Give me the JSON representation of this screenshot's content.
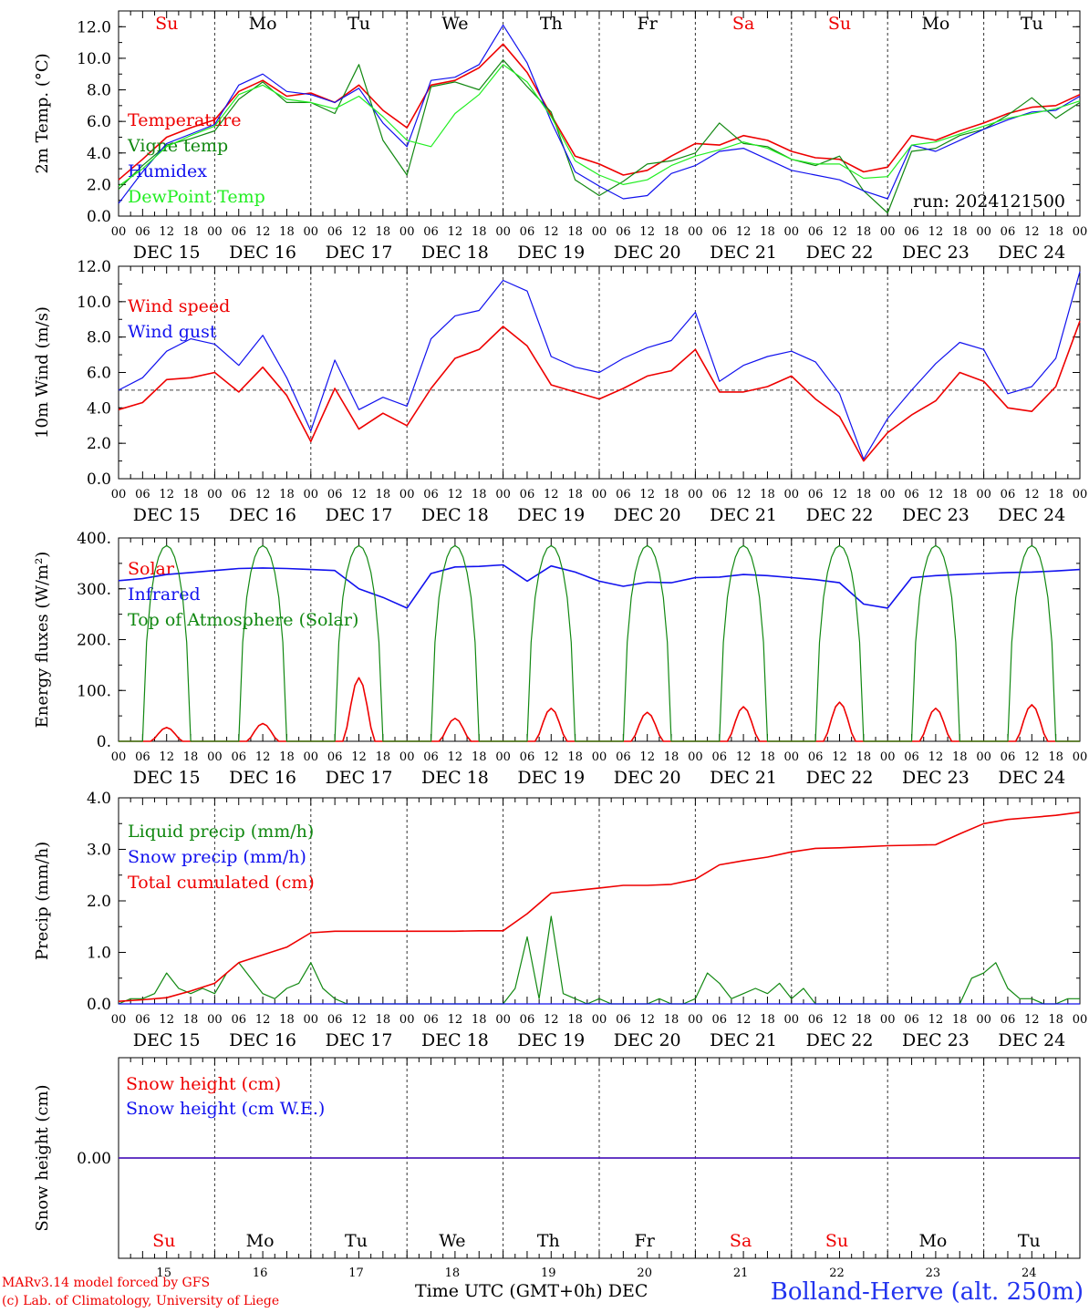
{
  "footer": {
    "credit_line1": "MARv3.14 model forced by GFS",
    "credit_line2": "(c) Lab. of Climatology, University of Liege",
    "x_axis_title": "Time UTC (GMT+0h) DEC",
    "station": "Bolland-Herve (alt. 250m)"
  },
  "run_label": "run: 2024121500",
  "colors": {
    "red": "#ee0000",
    "green": "#118811",
    "blue": "#1111ee",
    "lightgreen": "#22ee22",
    "axis": "#000000"
  },
  "weekday_labels": [
    {
      "text": "Su",
      "color": "red"
    },
    {
      "text": "Mo",
      "color": "black"
    },
    {
      "text": "Tu",
      "color": "black"
    },
    {
      "text": "We",
      "color": "black"
    },
    {
      "text": "Th",
      "color": "black"
    },
    {
      "text": "Fr",
      "color": "black"
    },
    {
      "text": "Sa",
      "color": "red"
    },
    {
      "text": "Su",
      "color": "red"
    },
    {
      "text": "Mo",
      "color": "black"
    },
    {
      "text": "Tu",
      "color": "black"
    }
  ],
  "date_labels": [
    "DEC 15",
    "DEC 16",
    "DEC 17",
    "DEC 18",
    "DEC 19",
    "DEC 20",
    "DEC 21",
    "DEC 22",
    "DEC 23",
    "DEC 24"
  ],
  "hour_ticks": [
    "00",
    "06",
    "12",
    "18"
  ],
  "hour_tick_end": "00",
  "bottom_day_numbers": [
    "15",
    "16",
    "17",
    "18",
    "19",
    "20",
    "21",
    "22",
    "23",
    "24"
  ],
  "chart_data": [
    {
      "type": "line",
      "ylabel": "2m Temp. (°C)",
      "ylim": [
        0,
        13
      ],
      "yticks": [
        "0.0",
        "2.0",
        "4.0",
        "6.0",
        "8.0",
        "10.0",
        "12.0"
      ],
      "ytick_values": [
        0,
        2,
        4,
        6,
        8,
        10,
        12
      ],
      "weekday_row": "top",
      "x_unit": "hours since 00 UTC DEC 15",
      "series": [
        {
          "name": "Temperature",
          "color": "red",
          "x": [
            0,
            6,
            12,
            18,
            24,
            30,
            36,
            42,
            48,
            54,
            60,
            66,
            72,
            78,
            84,
            90,
            96,
            102,
            108,
            114,
            120,
            126,
            132,
            138,
            144,
            150,
            156,
            162,
            168,
            174,
            180,
            186,
            192,
            198,
            204,
            210,
            216,
            222,
            228,
            234,
            240
          ],
          "y": [
            2.3,
            3.6,
            5.0,
            5.6,
            6.1,
            7.9,
            8.6,
            7.6,
            7.8,
            7.2,
            8.3,
            6.7,
            5.6,
            8.3,
            8.6,
            9.4,
            10.9,
            9.1,
            6.4,
            3.8,
            3.3,
            2.6,
            2.9,
            3.8,
            4.6,
            4.5,
            5.1,
            4.8,
            4.1,
            3.7,
            3.6,
            2.8,
            3.1,
            5.1,
            4.8,
            5.4,
            5.9,
            6.5,
            6.9,
            7.0,
            7.7
          ]
        },
        {
          "name": "Vigne temp",
          "color": "green",
          "x": [
            0,
            6,
            12,
            18,
            24,
            30,
            36,
            42,
            48,
            54,
            60,
            66,
            72,
            78,
            84,
            90,
            96,
            102,
            108,
            114,
            120,
            126,
            132,
            138,
            144,
            150,
            156,
            162,
            168,
            174,
            180,
            186,
            192,
            198,
            204,
            210,
            216,
            222,
            228,
            234,
            240
          ],
          "y": [
            1.7,
            3.2,
            4.5,
            4.9,
            5.4,
            7.4,
            8.5,
            7.2,
            7.2,
            6.5,
            9.6,
            4.8,
            2.6,
            8.2,
            8.5,
            8.0,
            9.9,
            8.2,
            6.6,
            2.3,
            1.3,
            2.2,
            3.3,
            3.5,
            4.0,
            5.9,
            4.6,
            4.4,
            3.6,
            3.2,
            3.8,
            1.6,
            0.2,
            4.1,
            4.3,
            5.1,
            5.5,
            6.4,
            7.5,
            6.2,
            7.2
          ]
        },
        {
          "name": "Humidex",
          "color": "blue",
          "x": [
            0,
            6,
            12,
            18,
            24,
            30,
            36,
            42,
            48,
            54,
            60,
            66,
            72,
            78,
            84,
            90,
            96,
            102,
            108,
            114,
            120,
            126,
            132,
            138,
            144,
            150,
            156,
            162,
            168,
            174,
            180,
            186,
            192,
            198,
            204,
            210,
            216,
            222,
            228,
            234,
            240
          ],
          "y": [
            0.8,
            2.8,
            4.6,
            5.2,
            5.8,
            8.3,
            9.0,
            7.9,
            7.7,
            7.2,
            8.1,
            5.9,
            4.4,
            8.6,
            8.8,
            9.6,
            12.1,
            9.7,
            6.0,
            2.8,
            1.9,
            1.1,
            1.3,
            2.7,
            3.2,
            4.1,
            4.3,
            3.6,
            2.9,
            2.6,
            2.3,
            1.6,
            1.1,
            4.5,
            4.1,
            4.8,
            5.5,
            6.1,
            6.6,
            6.7,
            7.6
          ]
        },
        {
          "name": "DewPoint Temp",
          "color": "lightgreen",
          "x": [
            0,
            6,
            12,
            18,
            24,
            30,
            36,
            42,
            48,
            54,
            60,
            66,
            72,
            78,
            84,
            90,
            96,
            102,
            108,
            114,
            120,
            126,
            132,
            138,
            144,
            150,
            156,
            162,
            168,
            174,
            180,
            186,
            192,
            198,
            204,
            210,
            216,
            222,
            228,
            234,
            240
          ],
          "y": [
            1.9,
            3.0,
            4.4,
            5.1,
            5.7,
            7.7,
            8.3,
            7.4,
            7.2,
            6.8,
            7.6,
            6.3,
            4.8,
            4.4,
            6.5,
            7.7,
            9.6,
            8.5,
            6.3,
            3.5,
            2.6,
            2.0,
            2.3,
            3.2,
            3.8,
            4.2,
            4.7,
            4.3,
            3.6,
            3.3,
            3.3,
            2.4,
            2.5,
            4.5,
            4.7,
            5.2,
            5.7,
            6.2,
            6.5,
            6.8,
            7.3
          ]
        }
      ]
    },
    {
      "type": "line",
      "ylabel": "10m Wind (m/s)",
      "ylim": [
        0,
        12
      ],
      "yticks": [
        "0.0",
        "2.0",
        "4.0",
        "6.0",
        "8.0",
        "10.0",
        "12.0"
      ],
      "ytick_values": [
        0,
        2,
        4,
        6,
        8,
        10,
        12
      ],
      "reference_line": 5.0,
      "x_unit": "hours since 00 UTC DEC 15",
      "series": [
        {
          "name": "Wind speed",
          "color": "red",
          "x": [
            0,
            6,
            12,
            18,
            24,
            30,
            36,
            42,
            48,
            54,
            60,
            66,
            72,
            78,
            84,
            90,
            96,
            102,
            108,
            114,
            120,
            126,
            132,
            138,
            144,
            150,
            156,
            162,
            168,
            174,
            180,
            186,
            192,
            198,
            204,
            210,
            216,
            222,
            228,
            234,
            240
          ],
          "y": [
            3.9,
            4.3,
            5.6,
            5.7,
            6.0,
            4.9,
            6.3,
            4.7,
            2.1,
            5.1,
            2.8,
            3.7,
            3.0,
            5.1,
            6.8,
            7.3,
            8.6,
            7.5,
            5.3,
            4.9,
            4.5,
            5.1,
            5.8,
            6.1,
            7.3,
            4.9,
            4.9,
            5.2,
            5.8,
            4.5,
            3.5,
            1.0,
            2.6,
            3.6,
            4.4,
            6.0,
            5.5,
            4.0,
            3.8,
            5.2,
            8.9
          ]
        },
        {
          "name": "Wind gust",
          "color": "blue",
          "x": [
            0,
            6,
            12,
            18,
            24,
            30,
            36,
            42,
            48,
            54,
            60,
            66,
            72,
            78,
            84,
            90,
            96,
            102,
            108,
            114,
            120,
            126,
            132,
            138,
            144,
            150,
            156,
            162,
            168,
            174,
            180,
            186,
            192,
            198,
            204,
            210,
            216,
            222,
            228,
            234,
            240
          ],
          "y": [
            5.0,
            5.7,
            7.2,
            7.9,
            7.6,
            6.4,
            8.1,
            5.7,
            2.7,
            6.7,
            3.9,
            4.6,
            4.1,
            7.9,
            9.2,
            9.5,
            11.2,
            10.6,
            6.9,
            6.3,
            6.0,
            6.8,
            7.4,
            7.8,
            9.4,
            5.5,
            6.4,
            6.9,
            7.2,
            6.6,
            4.8,
            1.1,
            3.4,
            5.0,
            6.5,
            7.7,
            7.3,
            4.8,
            5.2,
            6.8,
            11.7
          ]
        }
      ]
    },
    {
      "type": "line",
      "ylabel": "Energy fluxes (W/m²)",
      "ylim": [
        0,
        400
      ],
      "yticks": [
        "0.",
        "100.",
        "200.",
        "300.",
        "400."
      ],
      "ytick_values": [
        0,
        100,
        200,
        300,
        400
      ],
      "x_unit": "hours since 00 UTC DEC 15",
      "series": [
        {
          "name": "Solar",
          "color": "red",
          "daily_peaks": [
            27,
            35,
            125,
            45,
            65,
            57,
            68,
            77,
            65,
            72
          ]
        },
        {
          "name": "Infrared",
          "color": "blue",
          "x": [
            0,
            6,
            12,
            18,
            24,
            30,
            36,
            42,
            48,
            54,
            60,
            66,
            72,
            78,
            84,
            90,
            96,
            102,
            108,
            114,
            120,
            126,
            132,
            138,
            144,
            150,
            156,
            162,
            168,
            174,
            180,
            186,
            192,
            198,
            204,
            210,
            216,
            222,
            228,
            234,
            240
          ],
          "y": [
            316,
            320,
            328,
            332,
            336,
            340,
            341,
            340,
            338,
            336,
            300,
            283,
            262,
            330,
            343,
            344,
            347,
            315,
            345,
            333,
            315,
            305,
            313,
            312,
            322,
            323,
            328,
            326,
            322,
            318,
            312,
            270,
            262,
            322,
            326,
            328,
            330,
            332,
            333,
            335,
            338
          ]
        },
        {
          "name": "Top of Atmosphere (Solar)",
          "color": "green",
          "daily_peaks": [
            385,
            385,
            385,
            385,
            385,
            385,
            385,
            385,
            385,
            385
          ]
        }
      ]
    },
    {
      "type": "line",
      "ylabel": "Precip (mm/h)",
      "ylim": [
        0,
        4
      ],
      "yticks": [
        "0.0",
        "1.0",
        "2.0",
        "3.0",
        "4.0"
      ],
      "ytick_values": [
        0,
        1,
        2,
        3,
        4
      ],
      "x_unit": "hours since 00 UTC DEC 15",
      "series": [
        {
          "name": "Liquid precip (mm/h)",
          "color": "green",
          "x": [
            0,
            3,
            6,
            9,
            12,
            15,
            18,
            21,
            24,
            27,
            30,
            33,
            36,
            39,
            42,
            45,
            48,
            51,
            54,
            57,
            60,
            63,
            66,
            69,
            72,
            75,
            78,
            81,
            84,
            87,
            90,
            93,
            96,
            99,
            102,
            105,
            108,
            111,
            114,
            117,
            120,
            123,
            126,
            129,
            132,
            135,
            138,
            141,
            144,
            147,
            150,
            153,
            156,
            159,
            162,
            165,
            168,
            171,
            174,
            177,
            180,
            183,
            186,
            189,
            192,
            195,
            198,
            201,
            204,
            207,
            210,
            213,
            216,
            219,
            222,
            225,
            228,
            231,
            234,
            237,
            240
          ],
          "y": [
            0.0,
            0.1,
            0.1,
            0.2,
            0.6,
            0.3,
            0.2,
            0.3,
            0.2,
            0.6,
            0.8,
            0.5,
            0.2,
            0.1,
            0.3,
            0.4,
            0.8,
            0.3,
            0.1,
            0.0,
            0.0,
            0.0,
            0.0,
            0.0,
            0.0,
            0.0,
            0.0,
            0.0,
            0.0,
            0.0,
            0.0,
            0.0,
            0.0,
            0.3,
            1.3,
            0.1,
            1.7,
            0.2,
            0.1,
            0.0,
            0.1,
            0.0,
            0.0,
            0.0,
            0.0,
            0.1,
            0.0,
            0.0,
            0.1,
            0.6,
            0.4,
            0.1,
            0.2,
            0.3,
            0.2,
            0.4,
            0.1,
            0.3,
            0.0,
            0.0,
            0.0,
            0.0,
            0.0,
            0.0,
            0.0,
            0.0,
            0.0,
            0.0,
            0.0,
            0.0,
            0.0,
            0.5,
            0.6,
            0.8,
            0.3,
            0.1,
            0.1,
            0.0,
            0.0,
            0.1,
            0.1
          ]
        },
        {
          "name": "Snow precip (mm/h)",
          "color": "blue",
          "x": [
            0,
            240
          ],
          "y": [
            0.0,
            0.0
          ]
        },
        {
          "name": "Total cumulated (cm)",
          "color": "red",
          "x": [
            0,
            6,
            12,
            18,
            24,
            30,
            36,
            42,
            48,
            54,
            60,
            66,
            72,
            78,
            84,
            90,
            96,
            102,
            108,
            114,
            120,
            126,
            132,
            138,
            144,
            150,
            156,
            162,
            168,
            174,
            180,
            186,
            192,
            198,
            204,
            210,
            216,
            222,
            228,
            234,
            240
          ],
          "y": [
            0.05,
            0.08,
            0.12,
            0.25,
            0.4,
            0.8,
            0.95,
            1.1,
            1.38,
            1.41,
            1.41,
            1.41,
            1.41,
            1.41,
            1.41,
            1.42,
            1.42,
            1.75,
            2.15,
            2.2,
            2.25,
            2.3,
            2.3,
            2.32,
            2.42,
            2.7,
            2.78,
            2.85,
            2.95,
            3.02,
            3.03,
            3.05,
            3.07,
            3.08,
            3.09,
            3.3,
            3.5,
            3.58,
            3.62,
            3.66,
            3.72
          ]
        }
      ]
    },
    {
      "type": "line",
      "ylabel": "Snow height (cm)",
      "ylim": [
        -1,
        1
      ],
      "yticks": [
        "0.00"
      ],
      "ytick_values": [
        0
      ],
      "weekday_row": "bottom",
      "x_unit": "hours since 00 UTC DEC 15",
      "series": [
        {
          "name": "Snow height (cm)",
          "color": "red",
          "x": [
            0,
            240
          ],
          "y": [
            0.0,
            0.0
          ]
        },
        {
          "name": "Snow height (cm W.E.)",
          "color": "blue",
          "x": [
            0,
            240
          ],
          "y": [
            0.0,
            0.0
          ]
        }
      ]
    }
  ]
}
